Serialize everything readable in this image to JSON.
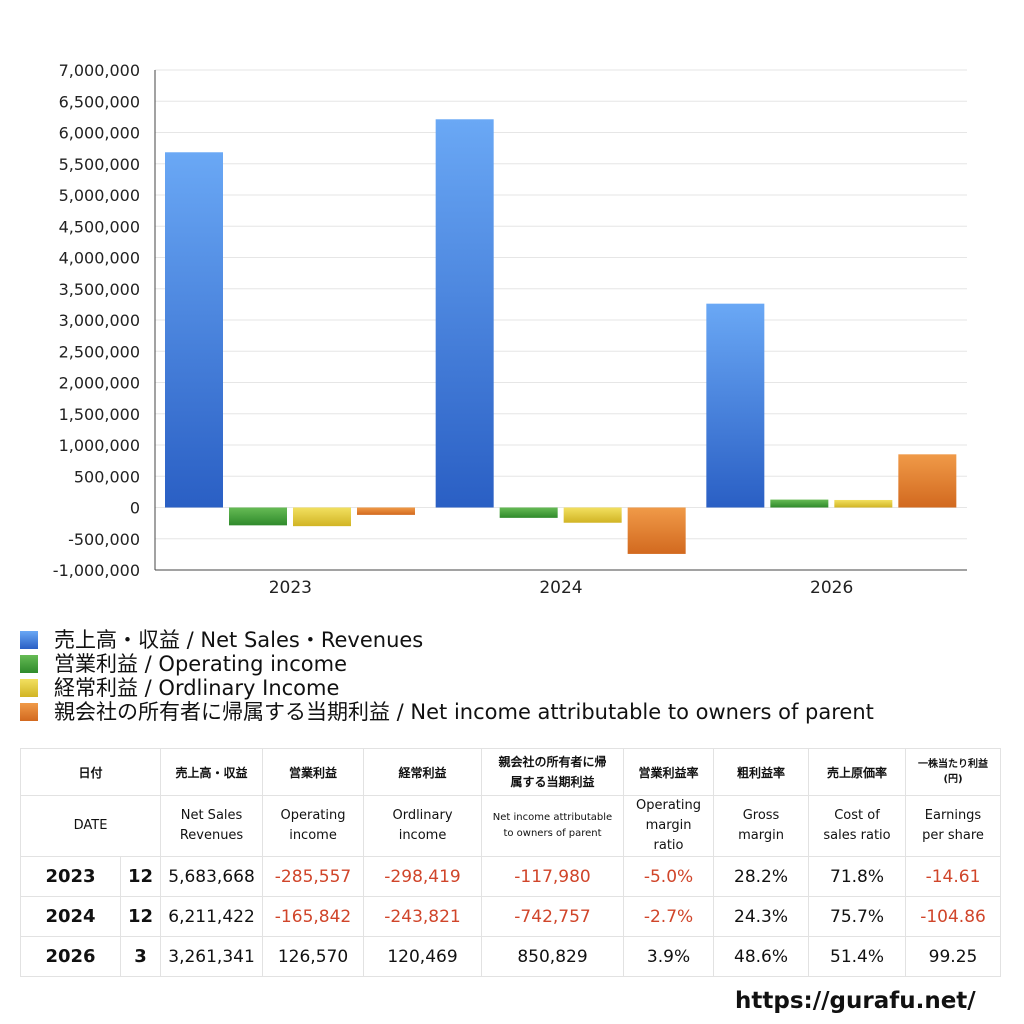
{
  "chart_data": {
    "type": "bar",
    "categories": [
      "2023",
      "2024",
      "2026"
    ],
    "ylim": [
      -1000000,
      7000000
    ],
    "yticks": [
      7000000,
      6500000,
      6000000,
      5500000,
      5000000,
      4500000,
      4000000,
      3500000,
      3000000,
      2500000,
      2000000,
      1500000,
      1000000,
      500000,
      0,
      -500000,
      -1000000
    ],
    "ytick_labels": [
      "7,000,000",
      "6,500,000",
      "6,000,000",
      "5,500,000",
      "5,000,000",
      "4,500,000",
      "4,000,000",
      "3,500,000",
      "3,000,000",
      "2,500,000",
      "2,000,000",
      "1,500,000",
      "1,000,000",
      "500,000",
      "0",
      "-500,000",
      "-1,000,000"
    ],
    "grid": true,
    "legend_position": "bottom-left",
    "series": [
      {
        "name": "売上高・収益 / Net Sales・Revenues",
        "values": [
          5683668,
          6211422,
          3261341
        ],
        "color": "#3f7fe0"
      },
      {
        "name": "営業利益 / Operating income",
        "values": [
          -285557,
          -165842,
          126570
        ],
        "color": "#3f9a3a"
      },
      {
        "name": "経常利益 / Ordlinary Income",
        "values": [
          -298419,
          -243821,
          120469
        ],
        "color": "#e3c93a"
      },
      {
        "name": "親会社の所有者に帰属する当期利益 / Net income attributable to owners of parent",
        "values": [
          -117980,
          -742757,
          850829
        ],
        "color": "#e07a2c"
      }
    ]
  },
  "table": {
    "header_jp": [
      "日付",
      "売上高・収益",
      "営業利益",
      "経常利益",
      "親会社の所有者に帰属する当期利益",
      "営業利益率",
      "粗利益率",
      "売上原価率",
      "一株当たり利益(円)"
    ],
    "header_en": [
      "DATE",
      "Net Sales Revenues",
      "Operating income",
      "Ordlinary income",
      "Net income attributable to owners of parent",
      "Operating margin ratio",
      "Gross margin",
      "Cost of sales ratio",
      "Earnings per share"
    ],
    "rows": [
      {
        "year": "2023",
        "month": "12",
        "sales": "5,683,668",
        "op": "-285,557",
        "ord": "-298,419",
        "net": "-117,980",
        "opm": "-5.0%",
        "gm": "28.2%",
        "cos": "71.8%",
        "eps": "-14.61"
      },
      {
        "year": "2024",
        "month": "12",
        "sales": "6,211,422",
        "op": "-165,842",
        "ord": "-243,821",
        "net": "-742,757",
        "opm": "-2.7%",
        "gm": "24.3%",
        "cos": "75.7%",
        "eps": "-104.86"
      },
      {
        "year": "2026",
        "month": "3",
        "sales": "3,261,341",
        "op": "126,570",
        "ord": "120,469",
        "net": "850,829",
        "opm": "3.9%",
        "gm": "48.6%",
        "cos": "51.4%",
        "eps": "99.25"
      }
    ]
  },
  "footer": {
    "url": "https://gurafu.net/"
  }
}
